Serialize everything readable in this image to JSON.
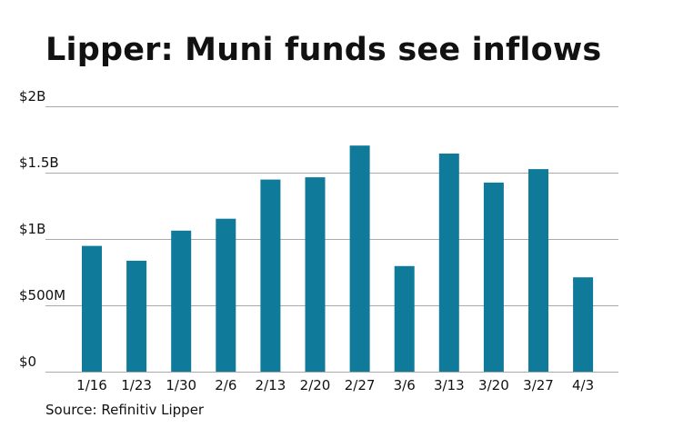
{
  "title": "Lipper: Muni funds see inflows",
  "source": "Source: Refinitiv Lipper",
  "colors": {
    "bar": "#0f7a99",
    "gridline": "#aaaaaa",
    "text": "#111111"
  },
  "chart_data": {
    "type": "bar",
    "title": "Lipper: Muni funds see inflows",
    "xlabel": "",
    "ylabel": "",
    "categories": [
      "1/16",
      "1/23",
      "1/30",
      "2/6",
      "2/13",
      "2/20",
      "2/27",
      "3/6",
      "3/13",
      "3/20",
      "3/27",
      "4/3"
    ],
    "values": [
      948,
      836,
      1063,
      1153,
      1448,
      1465,
      1704,
      796,
      1644,
      1425,
      1527,
      711
    ],
    "value_unit": "millions of dollars",
    "ylim": [
      0,
      2000
    ],
    "yticks": [
      0,
      500,
      1000,
      1500,
      2000
    ],
    "ytick_labels": [
      "$0",
      "$500M",
      "$1B",
      "$1.5B",
      "$2B"
    ],
    "grid": true,
    "legend": "none"
  }
}
